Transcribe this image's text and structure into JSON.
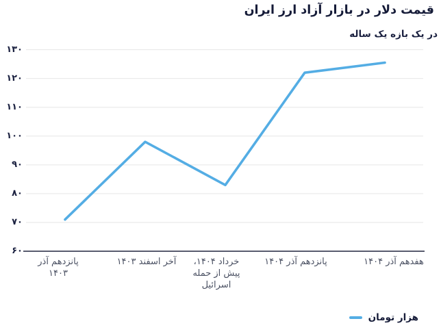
{
  "header": {
    "title": "قیمت دلار در بازار آزاد ارز ایران",
    "subtitle": "در یک بازه یک ساله"
  },
  "legend": {
    "label": "هزار تومان"
  },
  "colors": {
    "line": "#54ade4",
    "title_text": "#151b38",
    "axis_line": "#20253f",
    "gridline": "#e6e6e6",
    "x_tick_text": "#4b5163",
    "y_tick_text": "#1b2140"
  },
  "chart_data": {
    "type": "line",
    "title": "قیمت دلار در بازار آزاد ارز ایران",
    "subtitle": "در یک بازه یک ساله",
    "unit_legend": "هزار تومان",
    "categories": [
      "پانزدهم آذر ۱۴۰۳",
      "آخر اسفند ۱۴۰۳",
      "خرداد ۱۴۰۴، پیش از حمله اسرائیل",
      "پانزدهم آذر ۱۴۰۴",
      "هفدهم آذر ۱۴۰۴"
    ],
    "tick_display": [
      "پانزدهم آذر\n۱۴۰۳",
      "آخر اسفند ۱۴۰۳",
      "خرداد ۱۴۰۴،\nپیش از حمله\nاسرائیل",
      "پانزدهم آذر ۱۴۰۴",
      "هفدهم آذر ۱۴۰۴"
    ],
    "values": [
      71,
      98,
      83,
      122,
      125.5
    ],
    "ylim": [
      60,
      130
    ],
    "y_tick_values": [
      60,
      70,
      80,
      90,
      100,
      110,
      120,
      130
    ],
    "y_tick_labels": [
      "۶۰",
      "۷۰",
      "۸۰",
      "۹۰",
      "۱۰۰",
      "۱۱۰",
      "۱۲۰",
      "۱۳۰"
    ],
    "grid": "horizontal",
    "legend_position": "bottom-right",
    "line_color": "#54ade4"
  }
}
